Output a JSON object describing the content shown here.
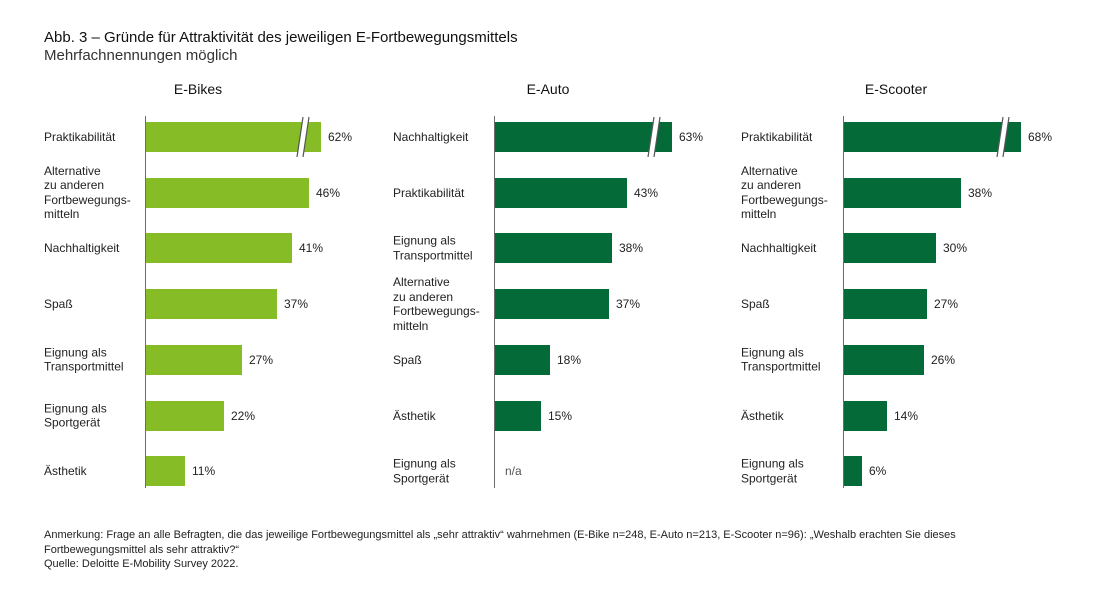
{
  "title": "Abb. 3 – Gründe für Attraktivität des jeweiligen E-Fortbewegungsmittels",
  "subtitle": "Mehrfachnennungen möglich",
  "chart_data": [
    {
      "type": "bar",
      "orientation": "horizontal",
      "title": "E-Bikes",
      "categories": [
        "Praktikabilität",
        "Alternative zu anderen Fortbewegungs-mitteln",
        "Nachhaltigkeit",
        "Spaß",
        "Eignung als Transportmittel",
        "Eignung als Sportgerät",
        "Ästhetik"
      ],
      "category_lines": [
        [
          "Praktikabilität"
        ],
        [
          "Alternative",
          "zu anderen",
          "Fortbewegungs-",
          "mitteln"
        ],
        [
          "Nachhaltigkeit"
        ],
        [
          "Spaß"
        ],
        [
          "Eignung als",
          "Transportmittel"
        ],
        [
          "Eignung als",
          "Sportgerät"
        ],
        [
          "Ästhetik"
        ]
      ],
      "values": [
        62,
        46,
        41,
        37,
        27,
        22,
        11
      ],
      "value_labels": [
        "62%",
        "46%",
        "41%",
        "37%",
        "27%",
        "22%",
        "11%"
      ],
      "axis_break": [
        true,
        false,
        false,
        false,
        false,
        false,
        false
      ],
      "color": "#86bc25",
      "unit": "%"
    },
    {
      "type": "bar",
      "orientation": "horizontal",
      "title": "E-Auto",
      "categories": [
        "Nachhaltigkeit",
        "Praktikabilität",
        "Eignung als Transportmittel",
        "Alternative zu anderen Fortbewegungs-mitteln",
        "Spaß",
        "Ästhetik",
        "Eignung als Sportgerät"
      ],
      "category_lines": [
        [
          "Nachhaltigkeit"
        ],
        [
          "Praktikabilität"
        ],
        [
          "Eignung als",
          "Transportmittel"
        ],
        [
          "Alternative",
          "zu anderen",
          "Fortbewegungs-",
          "mitteln"
        ],
        [
          "Spaß"
        ],
        [
          "Ästhetik"
        ],
        [
          "Eignung als",
          "Sportgerät"
        ]
      ],
      "values": [
        63,
        43,
        38,
        37,
        18,
        15,
        null
      ],
      "value_labels": [
        "63%",
        "43%",
        "38%",
        "37%",
        "18%",
        "15%",
        "n/a"
      ],
      "axis_break": [
        true,
        false,
        false,
        false,
        false,
        false,
        false
      ],
      "color": "#046a38",
      "unit": "%"
    },
    {
      "type": "bar",
      "orientation": "horizontal",
      "title": "E-Scooter",
      "categories": [
        "Praktikabilität",
        "Alternative zu anderen Fortbewegungs-mitteln",
        "Nachhaltigkeit",
        "Spaß",
        "Eignung als Transportmittel",
        "Ästhetik",
        "Eignung als Sportgerät"
      ],
      "category_lines": [
        [
          "Praktikabilität"
        ],
        [
          "Alternative",
          "zu anderen",
          "Fortbewegungs-",
          "mitteln"
        ],
        [
          "Nachhaltigkeit"
        ],
        [
          "Spaß"
        ],
        [
          "Eignung als",
          "Transportmittel"
        ],
        [
          "Ästhetik"
        ],
        [
          "Eignung als",
          "Sportgerät"
        ]
      ],
      "values": [
        68,
        38,
        30,
        27,
        26,
        14,
        6
      ],
      "value_labels": [
        "68%",
        "38%",
        "30%",
        "27%",
        "26%",
        "14%",
        "6%"
      ],
      "axis_break": [
        true,
        false,
        false,
        false,
        false,
        false,
        false
      ],
      "color": "#046a38",
      "unit": "%"
    }
  ],
  "note_lines": [
    "Anmerkung: Frage an alle Befragten, die das jeweilige Fortbewegungsmittel als „sehr attraktiv“ wahrnehmen (E-Bike n=248, E-Auto n=213, E-Scooter n=96): „Weshalb erachten Sie dieses",
    "Fortbewegungsmittel als sehr attraktiv?“",
    "Quelle: Deloitte E-Mobility Survey 2022."
  ]
}
